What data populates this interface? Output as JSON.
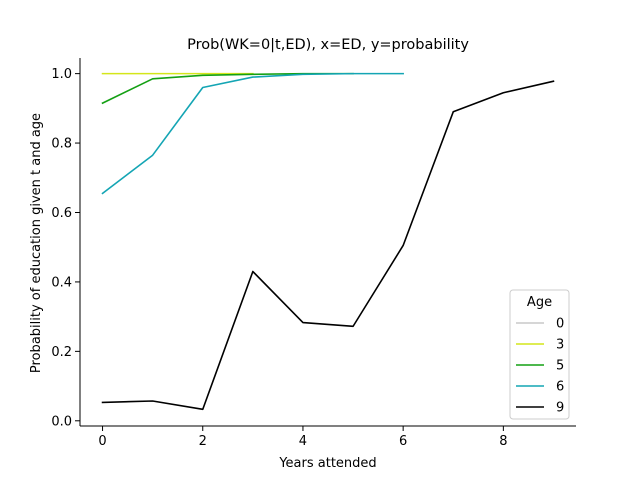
{
  "chart_data": {
    "type": "line",
    "title": "Prob(WK=0|t,ED), x=ED, y=probability",
    "xlabel": "Years attended",
    "ylabel": "Probability of education given t and age",
    "xlim": [
      -0.45,
      9.45
    ],
    "ylim": [
      -0.015,
      1.045
    ],
    "xticks": [
      0,
      2,
      4,
      6,
      8
    ],
    "xtick_labels": [
      "0",
      "2",
      "4",
      "6",
      "8"
    ],
    "yticks": [
      0.0,
      0.2,
      0.4,
      0.6,
      0.8,
      1.0
    ],
    "ytick_labels": [
      "0.0",
      "0.2",
      "0.4",
      "0.6",
      "0.8",
      "1.0"
    ],
    "grid": false,
    "legend": {
      "title": "Age",
      "placement": "lower-right"
    },
    "series": [
      {
        "name": "0",
        "color": "#c8c8c8",
        "x": [
          0
        ],
        "y": [
          1.0
        ]
      },
      {
        "name": "3",
        "color": "#d4e61a",
        "x": [
          0,
          1,
          2,
          3
        ],
        "y": [
          1.0,
          1.0,
          1.0,
          1.0
        ]
      },
      {
        "name": "5",
        "color": "#14a014",
        "x": [
          0,
          1,
          2,
          3,
          4,
          5
        ],
        "y": [
          0.915,
          0.985,
          0.995,
          0.998,
          1.0,
          1.0
        ]
      },
      {
        "name": "6",
        "color": "#14a5b4",
        "x": [
          0,
          1,
          2,
          3,
          4,
          5,
          6
        ],
        "y": [
          0.655,
          0.765,
          0.96,
          0.99,
          0.998,
          1.0,
          1.0
        ]
      },
      {
        "name": "9",
        "color": "#000000",
        "x": [
          0,
          1,
          2,
          3,
          4,
          5,
          6,
          7,
          8,
          9
        ],
        "y": [
          0.053,
          0.057,
          0.033,
          0.43,
          0.283,
          0.272,
          0.505,
          0.89,
          0.945,
          0.978
        ]
      }
    ]
  }
}
